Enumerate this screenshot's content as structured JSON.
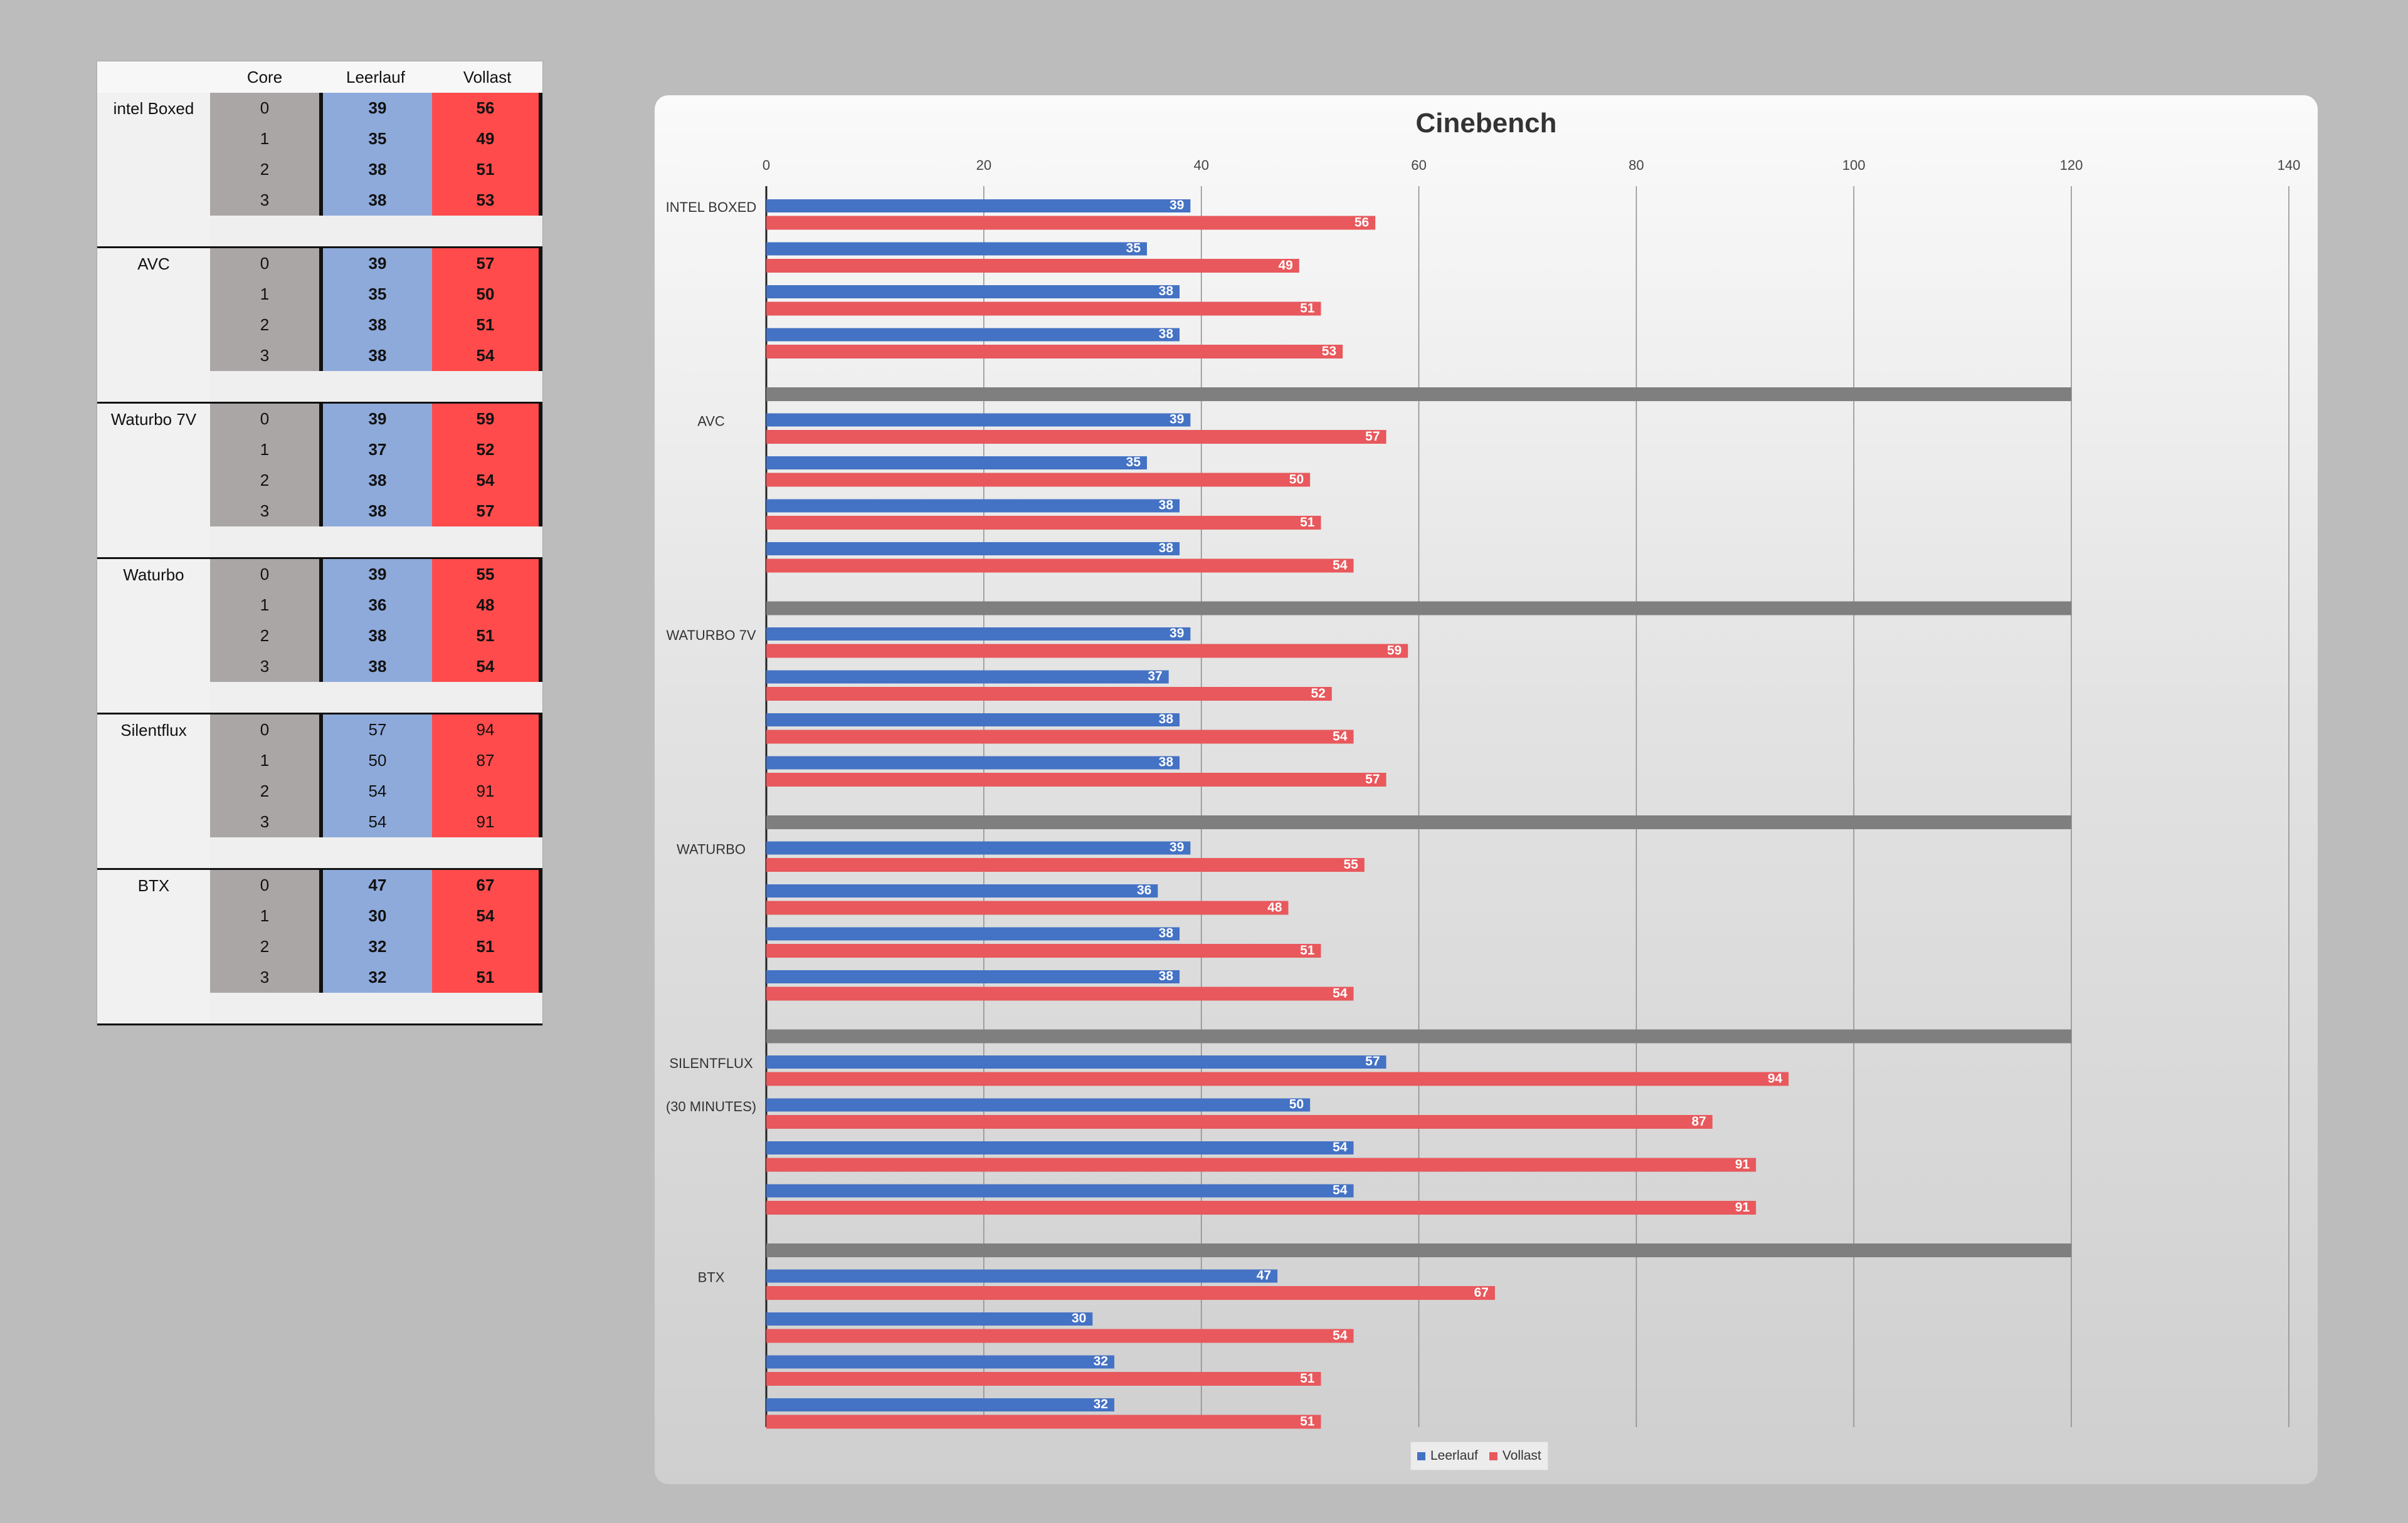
{
  "table": {
    "headers": [
      "Core",
      "Leerlauf",
      "Vollast"
    ],
    "groups": [
      {
        "name": "intel Boxed",
        "bold": true,
        "rows": [
          {
            "core": "0",
            "idle": "39",
            "load": "56"
          },
          {
            "core": "1",
            "idle": "35",
            "load": "49"
          },
          {
            "core": "2",
            "idle": "38",
            "load": "51"
          },
          {
            "core": "3",
            "idle": "38",
            "load": "53"
          }
        ]
      },
      {
        "name": "AVC",
        "bold": true,
        "rows": [
          {
            "core": "0",
            "idle": "39",
            "load": "57"
          },
          {
            "core": "1",
            "idle": "35",
            "load": "50"
          },
          {
            "core": "2",
            "idle": "38",
            "load": "51"
          },
          {
            "core": "3",
            "idle": "38",
            "load": "54"
          }
        ]
      },
      {
        "name": "Waturbo 7V",
        "bold": true,
        "rows": [
          {
            "core": "0",
            "idle": "39",
            "load": "59"
          },
          {
            "core": "1",
            "idle": "37",
            "load": "52"
          },
          {
            "core": "2",
            "idle": "38",
            "load": "54"
          },
          {
            "core": "3",
            "idle": "38",
            "load": "57"
          }
        ]
      },
      {
        "name": "Waturbo",
        "bold": true,
        "rows": [
          {
            "core": "0",
            "idle": "39",
            "load": "55"
          },
          {
            "core": "1",
            "idle": "36",
            "load": "48"
          },
          {
            "core": "2",
            "idle": "38",
            "load": "51"
          },
          {
            "core": "3",
            "idle": "38",
            "load": "54"
          }
        ]
      },
      {
        "name": "Silentflux",
        "bold": false,
        "rows": [
          {
            "core": "0",
            "idle": "57",
            "load": "94"
          },
          {
            "core": "1",
            "idle": "50",
            "load": "87"
          },
          {
            "core": "2",
            "idle": "54",
            "load": "91"
          },
          {
            "core": "3",
            "idle": "54",
            "load": "91"
          }
        ]
      },
      {
        "name": "BTX",
        "bold": true,
        "rows": [
          {
            "core": "0",
            "idle": "47",
            "load": "67"
          },
          {
            "core": "1",
            "idle": "30",
            "load": "54"
          },
          {
            "core": "2",
            "idle": "32",
            "load": "51"
          },
          {
            "core": "3",
            "idle": "32",
            "load": "51"
          }
        ]
      }
    ]
  },
  "chart_data": {
    "type": "bar",
    "orientation": "horizontal",
    "title": "Cinebench",
    "xlim": [
      0,
      140
    ],
    "xticks": [
      0,
      20,
      40,
      60,
      80,
      100,
      120,
      140
    ],
    "grid": true,
    "legend_position": "bottom",
    "groups": [
      {
        "labels": [
          "INTEL BOXED"
        ],
        "idle": [
          39,
          35,
          38,
          38
        ],
        "load": [
          56,
          49,
          51,
          53
        ]
      },
      {
        "labels": [
          "AVC"
        ],
        "idle": [
          39,
          35,
          38,
          38
        ],
        "load": [
          57,
          50,
          51,
          54
        ]
      },
      {
        "labels": [
          "WATURBO 7V"
        ],
        "idle": [
          39,
          37,
          38,
          38
        ],
        "load": [
          59,
          52,
          54,
          57
        ]
      },
      {
        "labels": [
          "WATURBO"
        ],
        "idle": [
          39,
          36,
          38,
          38
        ],
        "load": [
          55,
          48,
          51,
          54
        ]
      },
      {
        "labels": [
          "SILENTFLUX",
          "(30 MINUTES)"
        ],
        "idle": [
          57,
          50,
          54,
          54
        ],
        "load": [
          94,
          87,
          91,
          91
        ]
      },
      {
        "labels": [
          "BTX"
        ],
        "idle": [
          47,
          30,
          32,
          32
        ],
        "load": [
          67,
          54,
          51,
          51
        ]
      }
    ],
    "separator_value": 120,
    "series": [
      {
        "name": "Leerlauf",
        "color": "#4472c4"
      },
      {
        "name": "Vollast",
        "color": "#e8585c"
      }
    ],
    "separator_color": "#7f7f7f"
  }
}
